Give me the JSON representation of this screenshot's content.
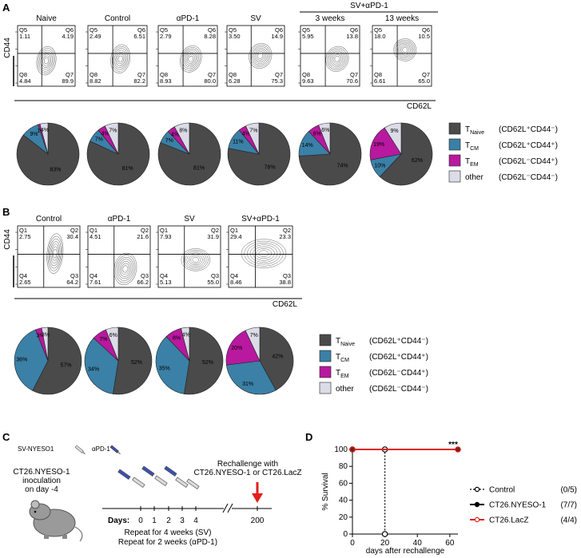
{
  "panel_a": {
    "label": "A",
    "group_header": "SV+αPD-1",
    "y_axis": "CD44",
    "x_axis": "CD62L",
    "plots": [
      {
        "title": "Naive",
        "quadrants": [
          {
            "name": "Q5",
            "value": "1.11"
          },
          {
            "name": "Q6",
            "value": "4.19"
          },
          {
            "name": "Q8",
            "value": "4.84"
          },
          {
            "name": "Q7",
            "value": "89.9"
          }
        ]
      },
      {
        "title": "Control",
        "quadrants": [
          {
            "name": "Q5",
            "value": "2.49"
          },
          {
            "name": "Q6",
            "value": "6.51"
          },
          {
            "name": "Q8",
            "value": "8.82"
          },
          {
            "name": "Q7",
            "value": "82.2"
          }
        ]
      },
      {
        "title": "αPD-1",
        "quadrants": [
          {
            "name": "Q5",
            "value": "2.79"
          },
          {
            "name": "Q6",
            "value": "8.28"
          },
          {
            "name": "Q8",
            "value": "8.93"
          },
          {
            "name": "Q7",
            "value": "80.0"
          }
        ]
      },
      {
        "title": "SV",
        "quadrants": [
          {
            "name": "Q5",
            "value": "3.50"
          },
          {
            "name": "Q6",
            "value": "14.9"
          },
          {
            "name": "Q8",
            "value": "6.28"
          },
          {
            "name": "Q7",
            "value": "75.3"
          }
        ]
      },
      {
        "title": "3 weeks",
        "quadrants": [
          {
            "name": "Q5",
            "value": "5.95"
          },
          {
            "name": "Q6",
            "value": "13.8"
          },
          {
            "name": "Q8",
            "value": "9.63"
          },
          {
            "name": "Q7",
            "value": "70.6"
          }
        ]
      },
      {
        "title": "13 weeks",
        "quadrants": [
          {
            "name": "Q5",
            "value": "18.0"
          },
          {
            "name": "Q6",
            "value": "10.5"
          },
          {
            "name": "Q8",
            "value": "6.61"
          },
          {
            "name": "Q7",
            "value": "65.0"
          }
        ]
      }
    ]
  },
  "panel_b": {
    "label": "B",
    "y_axis": "CD44",
    "x_axis": "CD62L",
    "plots": [
      {
        "title": "Control",
        "quadrants": [
          {
            "name": "Q1",
            "value": "2.75"
          },
          {
            "name": "Q2",
            "value": "30.4"
          },
          {
            "name": "Q4",
            "value": "2.65"
          },
          {
            "name": "Q3",
            "value": "64.2"
          }
        ]
      },
      {
        "title": "αPD-1",
        "quadrants": [
          {
            "name": "Q1",
            "value": "4.51"
          },
          {
            "name": "Q2",
            "value": "21.6"
          },
          {
            "name": "Q4",
            "value": "7.61"
          },
          {
            "name": "Q3",
            "value": "66.2"
          }
        ]
      },
      {
        "title": "SV",
        "quadrants": [
          {
            "name": "Q1",
            "value": "7.93"
          },
          {
            "name": "Q2",
            "value": "31.9"
          },
          {
            "name": "Q4",
            "value": "5.13"
          },
          {
            "name": "Q3",
            "value": "55.0"
          }
        ]
      },
      {
        "title": "SV+αPD-1",
        "quadrants": [
          {
            "name": "Q1",
            "value": "29.4"
          },
          {
            "name": "Q2",
            "value": "23.3"
          },
          {
            "name": "Q4",
            "value": "8.46"
          },
          {
            "name": "Q3",
            "value": "38.8"
          }
        ]
      }
    ]
  },
  "panel_c": {
    "label": "C",
    "drug1": "SV-NYESO1",
    "drug2": "αPD-1",
    "inoculation": [
      "CT26.NYESO-1",
      "inoculation",
      "on day -4"
    ],
    "rechallenge": [
      "Rechallenge with",
      "CT26.NYESO-1 or CT26.LacZ"
    ],
    "days_label": "Days:",
    "days": [
      "0",
      "1",
      "2",
      "3",
      "4",
      "200"
    ],
    "repeat": [
      "Repeat for 4 weeks (SV)",
      "Repeat for 2 weeks (αPD-1)"
    ]
  },
  "panel_d": {
    "label": "D"
  },
  "chart_data": [
    {
      "type": "pie",
      "categories": [
        {
          "prefix": "T",
          "sub": "Naive",
          "phenotype": "(CD62L⁺CD44⁻)"
        },
        {
          "prefix": "T",
          "sub": "CM",
          "phenotype": "(CD62L⁺CD44⁺)"
        },
        {
          "prefix": "T",
          "sub": "EM",
          "phenotype": "(CD62L⁻CD44⁺)"
        },
        {
          "prefix": "other",
          "sub": "",
          "phenotype": "(CD62L⁻CD44⁻)"
        }
      ],
      "colors": [
        "#4a4a4a",
        "#3b80a6",
        "#b8199f",
        "#dcdce8"
      ],
      "pies": [
        {
          "values": [
            83,
            9,
            1,
            4
          ],
          "value_labels": [
            "83%",
            "9%",
            "1%",
            "4%"
          ]
        },
        {
          "values": [
            81,
            7,
            4,
            7
          ],
          "value_labels": [
            "81%",
            "7%",
            "4%",
            "7%"
          ]
        },
        {
          "values": [
            81,
            7,
            4,
            8
          ],
          "value_labels": [
            "81%",
            "7%",
            "4%",
            "8%"
          ]
        },
        {
          "values": [
            78,
            11,
            4,
            7
          ],
          "value_labels": [
            "78%",
            "11%",
            "4%",
            "7%"
          ]
        },
        {
          "values": [
            74,
            14,
            6,
            6
          ],
          "value_labels": [
            "74%",
            "14%",
            "6%",
            "6%"
          ]
        },
        {
          "values": [
            62,
            10,
            19,
            9
          ],
          "value_labels": [
            "62%",
            "10%",
            "19%",
            "9%"
          ]
        }
      ]
    },
    {
      "type": "pie",
      "categories": [
        {
          "prefix": "T",
          "sub": "Naive",
          "phenotype": "(CD62L⁺CD44⁻)"
        },
        {
          "prefix": "T",
          "sub": "CM",
          "phenotype": "(CD62L⁺CD44⁺)"
        },
        {
          "prefix": "T",
          "sub": "EM",
          "phenotype": "(CD62L⁻CD44⁺)"
        },
        {
          "prefix": "other",
          "sub": "",
          "phenotype": "(CD62L⁻CD44⁻)"
        }
      ],
      "colors": [
        "#4a4a4a",
        "#3b80a6",
        "#b8199f",
        "#dcdce8"
      ],
      "pies": [
        {
          "values": [
            57,
            36,
            3,
            3
          ],
          "value_labels": [
            "57%",
            "36%",
            "3%",
            "3%"
          ]
        },
        {
          "values": [
            52,
            34,
            7,
            6
          ],
          "value_labels": [
            "52%",
            "34%",
            "7%",
            "6%"
          ]
        },
        {
          "values": [
            52,
            35,
            8,
            4
          ],
          "value_labels": [
            "52%",
            "35%",
            "8%",
            "4%"
          ]
        },
        {
          "values": [
            42,
            31,
            20,
            7
          ],
          "value_labels": [
            "42%",
            "31%",
            "20%",
            "7%"
          ]
        }
      ]
    },
    {
      "type": "line",
      "ylabel": "% Survival",
      "xlabel": "days after rechallenge",
      "annotation": "***",
      "xlim": [
        0,
        65
      ],
      "ylim": [
        0,
        100
      ],
      "xticks": [
        0,
        20,
        40,
        60
      ],
      "yticks": [
        0,
        20,
        40,
        60,
        80,
        100
      ],
      "series": [
        {
          "name": "Control",
          "count": "(0/5)",
          "color": "#000000",
          "style": "dotted",
          "marker": "open",
          "x": [
            0,
            20,
            20
          ],
          "values": [
            100,
            100,
            0
          ]
        },
        {
          "name": "CT26.NYESO-1",
          "count": "(7/7)",
          "color": "#000000",
          "style": "solid",
          "marker": "filled",
          "x": [
            0,
            65
          ],
          "values": [
            100,
            100
          ]
        },
        {
          "name": "CT26.LacZ",
          "count": "(4/4)",
          "color": "#e0201b",
          "style": "solid",
          "marker": "open",
          "x": [
            0,
            65
          ],
          "values": [
            100,
            100
          ]
        }
      ]
    }
  ]
}
